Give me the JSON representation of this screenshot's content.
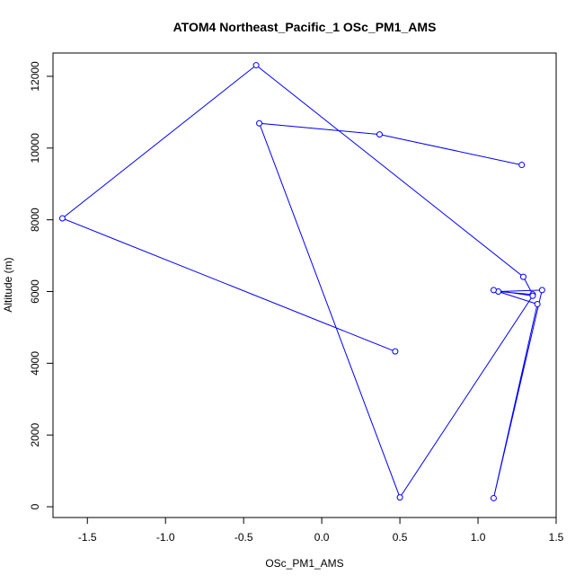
{
  "chart_data": {
    "type": "line",
    "title": "ATOM4 Northeast_Pacific_1 OSc_PM1_AMS",
    "xlabel": "OSc_PM1_AMS",
    "ylabel": "Altitude (m)",
    "xlim": [
      -1.72,
      1.5
    ],
    "ylim": [
      -300,
      12650
    ],
    "xticks": [
      -1.5,
      -1.0,
      -0.5,
      0.0,
      0.5,
      1.0,
      1.5
    ],
    "xtick_labels": [
      "-1.5",
      "-1.0",
      "-0.5",
      "0.0",
      "0.5",
      "1.0",
      "1.5"
    ],
    "yticks": [
      0,
      2000,
      4000,
      6000,
      8000,
      10000,
      12000
    ],
    "ytick_labels": [
      "0",
      "2000",
      "4000",
      "6000",
      "8000",
      "10000",
      "12000"
    ],
    "grid": false,
    "series": [
      {
        "color": "#0000ff",
        "marker": "open-circle",
        "points": [
          {
            "x": 0.47,
            "y": 4330
          },
          {
            "x": -1.66,
            "y": 8040
          },
          {
            "x": -0.42,
            "y": 12310
          },
          {
            "x": 1.29,
            "y": 6410
          },
          {
            "x": 1.35,
            "y": 5920
          },
          {
            "x": 1.13,
            "y": 6000
          },
          {
            "x": 1.41,
            "y": 6040
          },
          {
            "x": 1.1,
            "y": 240
          },
          {
            "x": 1.38,
            "y": 5650
          },
          {
            "x": 1.1,
            "y": 6040
          },
          {
            "x": 1.35,
            "y": 5880
          },
          {
            "x": 0.5,
            "y": 260
          },
          {
            "x": -0.4,
            "y": 10690
          },
          {
            "x": 0.37,
            "y": 10380
          },
          {
            "x": 1.28,
            "y": 9530
          }
        ]
      }
    ]
  }
}
